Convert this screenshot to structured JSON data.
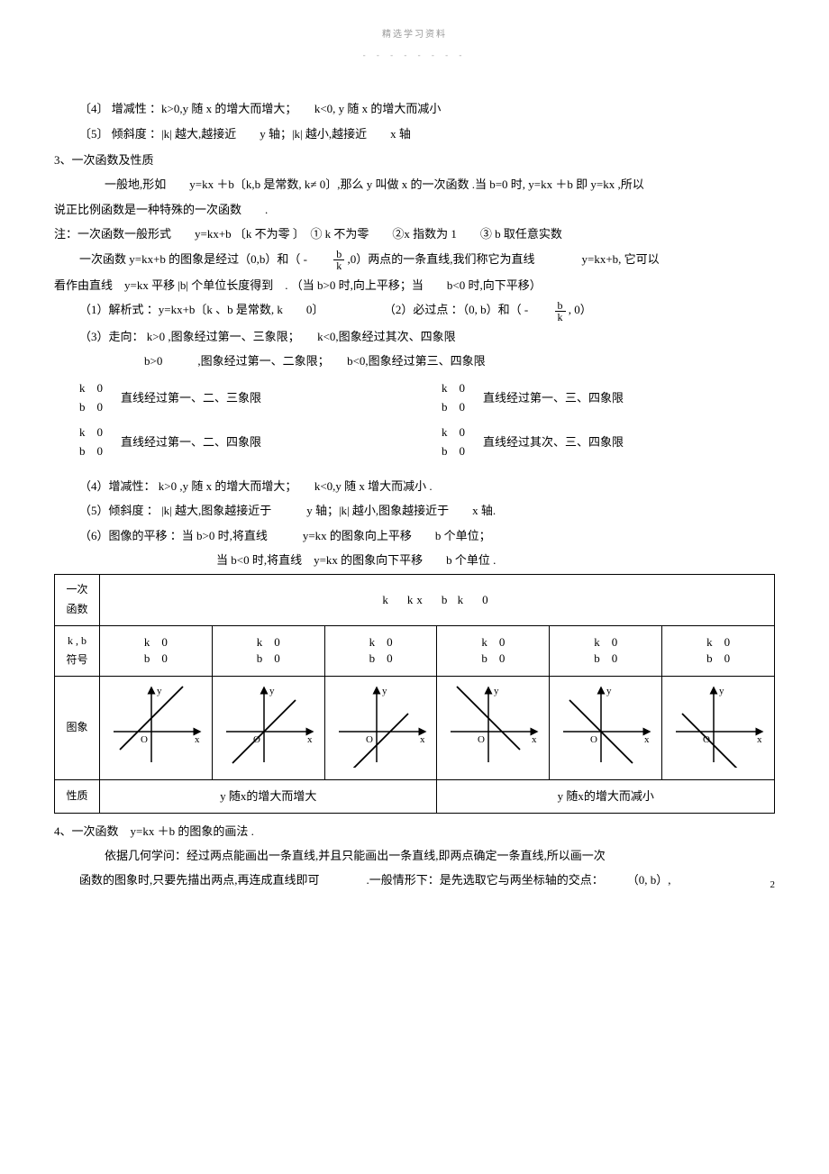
{
  "header": {
    "title": "精选学习资料",
    "dash": "- - - - - - - -"
  },
  "lines": {
    "l1": "〔4〕 增减性 ：k>0,y 随 x 的增大而增大；　　k<0, y 随 x 的增大而减小",
    "l2": "〔5〕 倾斜度 ：|k| 越大,越接近　　y 轴；|k| 越小,越接近　　x 轴",
    "l3": "3、一次函数及性质",
    "l4": "一般地,形如　　y=kx ＋b〔k,b 是常数, k≠ 0〕,那么 y 叫做 x 的一次函数 .当 b=0 时, y=kx ＋b 即 y=kx ,所以",
    "l5": "说正比例函数是一种特殊的一次函数　　.",
    "l6": "注：一次函数一般形式　　y=kx+b 〔k 不为零 〕　① k 不为零　　②x 指数为 1　　③ b 取任意实数",
    "l7a": "一次函数 y=kx+b 的图象是经过（0,b）和（ -　　",
    "l7b": " ,0）两点的一条直线,我们称它为直线　　　　y=kx+b, 它可以",
    "l8": "看作由直线　y=kx 平移 |b| 个单位长度得到　. （当 b>0 时,向上平移；当　　b<0 时,向下平移）",
    "l9a": "（1）解析式 ：y=kx+b〔k 、b 是常数, k　　0〕",
    "l9b": "（2）必过点 ：（0, b）和（ -　　",
    "l9c": " , 0）",
    "l10": "（3）走向： k>0 ,图象经过第一、三象限；　　k<0,图象经过其次、四象限",
    "l11": "b>0　　　,图象经过第一、二象限；　　b<0,图象经过第三、四象限",
    "l12": "（4）增减性： k>0 ,y 随 x 的增大而增大；　　k<0,y 随 x 增大而减小 .",
    "l13": "（5）倾斜度 ： |k| 越大,图象越接近于　　　y 轴；|k| 越小,图象越接近于　　x 轴.",
    "l14": "（6）图像的平移 ：当 b>0 时,将直线　　　y=kx 的图象向上平移　　b 个单位；",
    "l15": "当 b<0 时,将直线　y=kx 的图象向下平移　　b 个单位 .",
    "l16": "4、一次函数　y=kx ＋b 的图象的画法 .",
    "l17": "依据几何学问：经过两点能画出一条直线,并且只能画出一条直线,即两点确定一条直线,所以画一次",
    "l18": "函数的图象时,只要先描出两点,再连成直线即可　　　　.一般情形下：是先选取它与两坐标轴的交点：　　　（0, b）,"
  },
  "kb": {
    "r1c1_k": "k　0",
    "r1c1_b": "b　0",
    "r1c1_d": "直线经过第一、二、三象限",
    "r1c2_k": "k　0",
    "r1c2_b": "b　0",
    "r1c2_d": "直线经过第一、三、四象限",
    "r2c1_k": "k　0",
    "r2c1_b": "b　0",
    "r2c1_d": "直线经过第一、二、四象限",
    "r2c2_k": "k　0",
    "r2c2_b": "b　0",
    "r2c2_d": "直线经过其次、三、四象限"
  },
  "table": {
    "row1_label": "一次\n函数",
    "row1_content": "k　kx　b k　0",
    "row2_label": "k , b\n符号",
    "cond1_k": "k　0",
    "cond1_b": "b　0",
    "cond2_b": "b　0",
    "cond3_b": "b　0",
    "cond4_k": "k　0",
    "cond4_b": "b　0",
    "cond5_b": "b　0",
    "cond6_b": "b　0",
    "row3_label": "图象",
    "row4_label": "性质",
    "prop1": "y 随x的增大而增大",
    "prop2": "y 随x的增大而减小",
    "axis_y": "y",
    "axis_x": "x",
    "axis_o": "O"
  },
  "frac": {
    "top": "b",
    "bot": "k"
  },
  "graphs": {
    "line_color": "#000000",
    "axis_color": "#000000",
    "g1": {
      "slope": 1,
      "intercept": 15
    },
    "g2": {
      "slope": 1,
      "intercept": 0
    },
    "g3": {
      "slope": 1,
      "intercept": -15
    },
    "g4": {
      "slope": -1,
      "intercept": 15
    },
    "g5": {
      "slope": -1,
      "intercept": 0
    },
    "g6": {
      "slope": -1,
      "intercept": -15
    }
  },
  "page_number": "2"
}
